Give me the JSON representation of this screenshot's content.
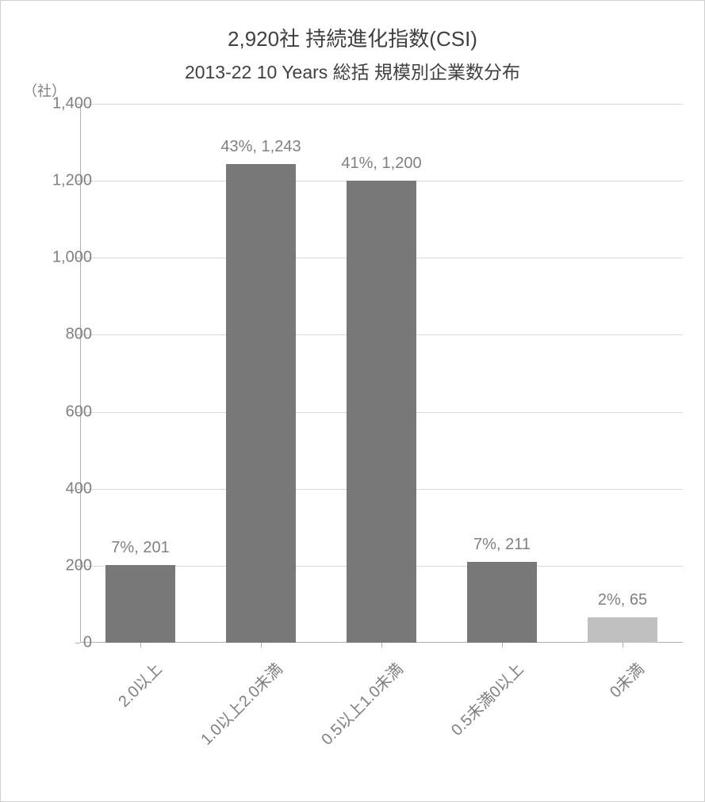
{
  "chart": {
    "type": "bar",
    "title": "2,920社 持続進化指数(CSI)",
    "subtitle": "2013-22 10 Years 総括 規模別企業数分布",
    "y_axis_unit": "（社）",
    "background_color": "#ffffff",
    "border_color": "#d0d0d0",
    "grid_color": "#d9d9d9",
    "axis_color": "#b0b0b0",
    "text_color": "#404040",
    "label_color": "#808080",
    "title_fontsize": 26,
    "subtitle_fontsize": 23,
    "tick_fontsize": 20,
    "label_fontsize": 20,
    "ylim": [
      0,
      1400
    ],
    "ytick_step": 200,
    "yticks": [
      "0",
      "200",
      "400",
      "600",
      "800",
      "1,000",
      "1,200",
      "1,400"
    ],
    "x_label_rotation": -45,
    "bar_width_ratio": 0.58,
    "categories": [
      "2.0以上",
      "1.0以上2.0未満",
      "0.5以上1.0未満",
      "0.5未満0以上",
      "0未満"
    ],
    "values": [
      201,
      1243,
      1200,
      211,
      65
    ],
    "percentages": [
      "7%",
      "43%",
      "41%",
      "7%",
      "2%"
    ],
    "data_labels": [
      "7%, 201",
      "43%, 1,243",
      "41%, 1,200",
      "7%, 211",
      "2%, 65"
    ],
    "bar_colors": [
      "#787878",
      "#787878",
      "#787878",
      "#787878",
      "#c0c0c0"
    ]
  }
}
